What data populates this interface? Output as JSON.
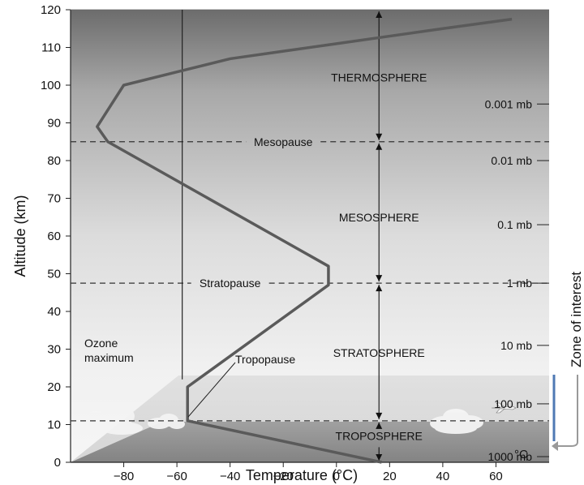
{
  "chart_data": {
    "type": "line",
    "title": "",
    "xlabel": "Temperature (°C)",
    "x_unit": "°C",
    "ylabel": "Altitude (km)",
    "xlim": [
      -100,
      80
    ],
    "ylim": [
      0,
      120
    ],
    "x_ticks": [
      -80,
      -60,
      -40,
      -20,
      0,
      20,
      40,
      60
    ],
    "x_tick_labels": [
      "−80",
      "−60",
      "−40",
      "−20",
      "0",
      "20",
      "40",
      "60"
    ],
    "y_ticks": [
      0,
      10,
      20,
      30,
      40,
      50,
      60,
      70,
      80,
      90,
      100,
      110,
      120
    ],
    "grid": false,
    "series": [
      {
        "x": [
          17,
          -56,
          -56,
          -3,
          -3,
          -86,
          -90,
          -80,
          -60,
          -40,
          -20,
          0,
          20,
          40,
          66
        ],
        "y": [
          0,
          11,
          20,
          47,
          52,
          85,
          89,
          100,
          103.5,
          107,
          109,
          111,
          113,
          115,
          117.5
        ]
      }
    ],
    "reference_line_x": -58,
    "boundaries": [
      {
        "label": "Tropopause",
        "altitude": 11
      },
      {
        "label": "Stratopause",
        "altitude": 47.5
      },
      {
        "label": "Mesopause",
        "altitude": 85
      }
    ],
    "layers": [
      {
        "label": "THERMOSPHERE",
        "altitude": 102
      },
      {
        "label": "MESOSPHERE",
        "altitude": 65
      },
      {
        "label": "STRATOSPHERE",
        "altitude": 29
      },
      {
        "label": "TROPOSPHERE",
        "altitude": 7
      }
    ],
    "pressure_levels": [
      {
        "label": "0.001 mb",
        "altitude": 95
      },
      {
        "label": "0.01 mb",
        "altitude": 80
      },
      {
        "label": "0.1 mb",
        "altitude": 63
      },
      {
        "label": "1 mb",
        "altitude": 47.5
      },
      {
        "label": "10 mb",
        "altitude": 31
      },
      {
        "label": "100 mb",
        "altitude": 15.5
      },
      {
        "label": "1000 mb",
        "altitude": 1.5
      }
    ],
    "annotations": {
      "ozone_line1": "Ozone",
      "ozone_line2": "maximum",
      "zone_of_interest": "Zone of interest"
    }
  },
  "colors": {
    "profile": "#5a5a5a",
    "accent_blue": "#4f79b4",
    "sky_top": "#6e6e6e",
    "sky_bottom": "#f2f2f2"
  }
}
